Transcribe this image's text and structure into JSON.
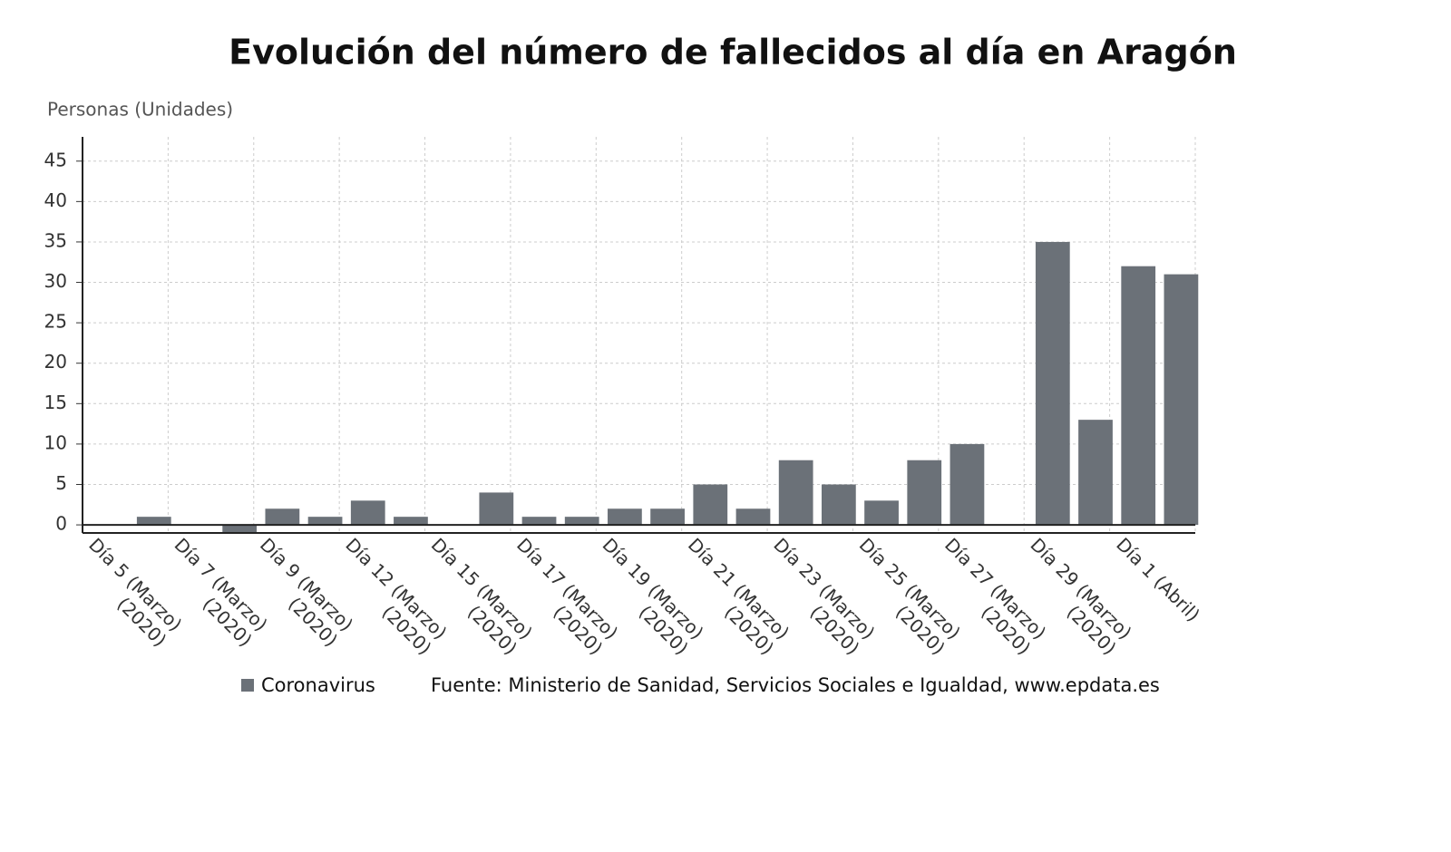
{
  "chart_data": {
    "type": "bar",
    "title": "Evolución del número de fallecidos al día en Aragón",
    "y_label": "Personas (Unidades)",
    "categories": [
      "Día 5 (Marzo) (2020)",
      null,
      "Día 7 (Marzo) (2020)",
      null,
      "Día 9 (Marzo) (2020)",
      null,
      "Día 12 (Marzo) (2020)",
      null,
      "Día 15 (Marzo) (2020)",
      null,
      "Día 17 (Marzo) (2020)",
      null,
      "Día 19 (Marzo) (2020)",
      null,
      "Día 21 (Marzo) (2020)",
      null,
      "Día 23 (Marzo) (2020)",
      null,
      "Día 25 (Marzo) (2020)",
      null,
      "Día 27 (Marzo) (2020)",
      null,
      "Día 29 (Marzo) (2020)",
      null,
      "Día 1 (Abril)",
      null
    ],
    "series": [
      {
        "name": "Coronavirus",
        "color": "#6b7178",
        "values": [
          0,
          1,
          0,
          -1,
          2,
          1,
          3,
          1,
          0,
          4,
          1,
          1,
          2,
          2,
          5,
          2,
          8,
          5,
          3,
          8,
          10,
          0,
          35,
          13,
          32,
          31
        ]
      }
    ],
    "ylim": [
      -1,
      48
    ],
    "yticks": [
      0,
      5,
      10,
      15,
      20,
      25,
      30,
      35,
      40,
      45
    ],
    "grid": true,
    "source": "Fuente: Ministerio de Sanidad, Servicios Sociales e Igualdad, www.epdata.es"
  }
}
